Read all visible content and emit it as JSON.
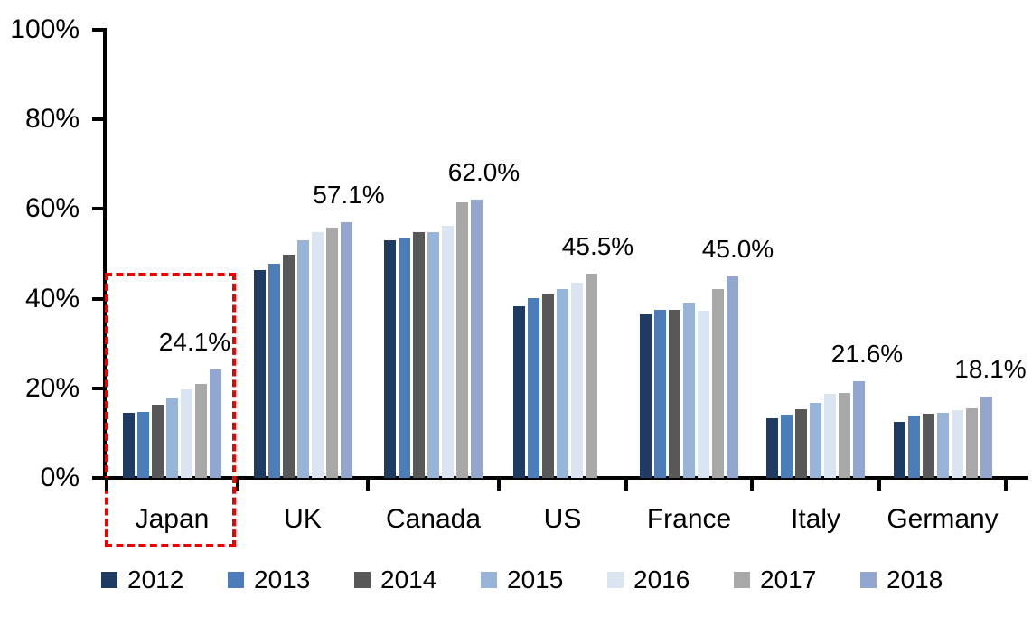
{
  "chart_data": {
    "type": "bar",
    "title": "",
    "categories": [
      "Japan",
      "UK",
      "Canada",
      "US",
      "France",
      "Italy",
      "Germany"
    ],
    "series": [
      {
        "name": "2012",
        "color": "#1F3A63",
        "values": [
          14.5,
          46.4,
          53.0,
          38.3,
          36.5,
          13.3,
          12.5
        ]
      },
      {
        "name": "2013",
        "color": "#4C7DB9",
        "values": [
          14.8,
          47.8,
          53.4,
          40.2,
          37.5,
          14.1,
          13.9
        ]
      },
      {
        "name": "2014",
        "color": "#585858",
        "values": [
          16.3,
          49.8,
          54.9,
          41.0,
          37.5,
          15.4,
          14.3
        ]
      },
      {
        "name": "2015",
        "color": "#98B4D9",
        "values": [
          17.8,
          53.0,
          54.8,
          42.2,
          39.1,
          16.8,
          14.5
        ]
      },
      {
        "name": "2016",
        "color": "#DBE5F1",
        "values": [
          19.8,
          54.8,
          56.3,
          43.6,
          37.3,
          18.8,
          15.2
        ]
      },
      {
        "name": "2017",
        "color": "#A8A8A8",
        "values": [
          21.0,
          55.8,
          61.5,
          45.5,
          42.1,
          19.0,
          15.6
        ]
      },
      {
        "name": "2018",
        "color": "#93A6D0",
        "values": [
          24.1,
          57.1,
          62.0,
          null,
          45.0,
          21.6,
          18.1
        ]
      }
    ],
    "data_labels": [
      "24.1%",
      "57.1%",
      "62.0%",
      "45.5%",
      "45.0%",
      "21.6%",
      "18.1%"
    ],
    "ylim": [
      0,
      100
    ],
    "ytick_labels": [
      "0%",
      "20%",
      "40%",
      "60%",
      "80%",
      "100%"
    ],
    "grid": false,
    "legend_position": "bottom",
    "legend_entries": [
      "2012",
      "2013",
      "2014",
      "2015",
      "2016",
      "2017",
      "2018"
    ],
    "annotations": [
      {
        "type": "dashed-rectangle",
        "color": "#EE0000",
        "target_category": "Japan"
      }
    ],
    "axis_color": "#000000",
    "text_color": "#000000",
    "background_color": "#FFFFFF"
  }
}
